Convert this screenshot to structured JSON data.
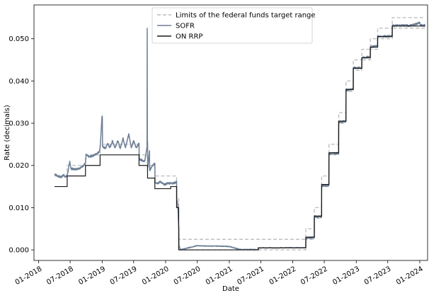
{
  "chart_data": {
    "type": "line",
    "title": "",
    "xlabel": "Date",
    "ylabel": "Rate (decimals)",
    "xlim": [
      "2017-12-05",
      "2024-02-15"
    ],
    "ylim": [
      -0.0025,
      0.058
    ],
    "x_ticks": [
      "2018-01-01",
      "2018-07-01",
      "2019-01-01",
      "2019-07-01",
      "2020-01-01",
      "2020-07-01",
      "2021-01-01",
      "2021-07-01",
      "2022-01-01",
      "2022-07-01",
      "2023-01-01",
      "2023-07-01",
      "2024-01-01"
    ],
    "x_tick_labels": [
      "01-2018",
      "07-2018",
      "01-2019",
      "07-2019",
      "01-2020",
      "07-2020",
      "01-2021",
      "07-2021",
      "01-2022",
      "07-2022",
      "01-2023",
      "07-2023",
      "01-2024"
    ],
    "y_ticks": [
      0.0,
      0.01,
      0.02,
      0.03,
      0.04,
      0.05
    ],
    "y_tick_labels": [
      "0.000",
      "0.010",
      "0.020",
      "0.030",
      "0.040",
      "0.050"
    ],
    "grid": false,
    "legend_position": "top-center",
    "colors": {
      "limits": "#bbbbbb",
      "sofr": "#6e7f96",
      "onrrp": "#1a1a1a"
    },
    "series": [
      {
        "name": "Limits of the federal funds target range",
        "style": "dashed",
        "upper": [
          [
            "2018-04-02",
            0.0175
          ],
          [
            "2018-06-14",
            0.0175
          ],
          [
            "2018-06-14",
            0.02
          ],
          [
            "2018-09-27",
            0.02
          ],
          [
            "2018-09-27",
            0.0225
          ],
          [
            "2018-12-20",
            0.0225
          ],
          [
            "2018-12-20",
            0.025
          ],
          [
            "2019-08-01",
            0.025
          ],
          [
            "2019-08-01",
            0.0225
          ],
          [
            "2019-09-19",
            0.0225
          ],
          [
            "2019-09-19",
            0.02
          ],
          [
            "2019-10-31",
            0.02
          ],
          [
            "2019-10-31",
            0.0175
          ],
          [
            "2020-03-04",
            0.0175
          ],
          [
            "2020-03-04",
            0.0125
          ],
          [
            "2020-03-16",
            0.0125
          ],
          [
            "2020-03-16",
            0.0025
          ],
          [
            "2022-03-17",
            0.0025
          ],
          [
            "2022-03-17",
            0.005
          ],
          [
            "2022-05-05",
            0.005
          ],
          [
            "2022-05-05",
            0.01
          ],
          [
            "2022-06-16",
            0.01
          ],
          [
            "2022-06-16",
            0.0175
          ],
          [
            "2022-07-28",
            0.0175
          ],
          [
            "2022-07-28",
            0.025
          ],
          [
            "2022-09-22",
            0.025
          ],
          [
            "2022-09-22",
            0.0325
          ],
          [
            "2022-11-03",
            0.0325
          ],
          [
            "2022-11-03",
            0.04
          ],
          [
            "2022-12-15",
            0.04
          ],
          [
            "2022-12-15",
            0.045
          ],
          [
            "2023-02-02",
            0.045
          ],
          [
            "2023-02-02",
            0.0475
          ],
          [
            "2023-03-23",
            0.0475
          ],
          [
            "2023-03-23",
            0.05
          ],
          [
            "2023-05-04",
            0.05
          ],
          [
            "2023-05-04",
            0.0525
          ],
          [
            "2023-07-27",
            0.0525
          ],
          [
            "2023-07-27",
            0.055
          ],
          [
            "2024-01-31",
            0.055
          ]
        ],
        "lower": [
          [
            "2020-03-16",
            0.0
          ],
          [
            "2022-03-17",
            0.0
          ],
          [
            "2022-03-17",
            0.0025
          ],
          [
            "2022-05-05",
            0.0025
          ],
          [
            "2022-05-05",
            0.0075
          ],
          [
            "2022-06-16",
            0.0075
          ],
          [
            "2022-06-16",
            0.015
          ],
          [
            "2022-07-28",
            0.015
          ],
          [
            "2022-07-28",
            0.0225
          ],
          [
            "2022-09-22",
            0.0225
          ],
          [
            "2022-09-22",
            0.03
          ],
          [
            "2022-11-03",
            0.03
          ],
          [
            "2022-11-03",
            0.0375
          ],
          [
            "2022-12-15",
            0.0375
          ],
          [
            "2022-12-15",
            0.0425
          ],
          [
            "2023-02-02",
            0.0425
          ],
          [
            "2023-02-02",
            0.045
          ],
          [
            "2023-03-23",
            0.045
          ],
          [
            "2023-03-23",
            0.0475
          ],
          [
            "2023-05-04",
            0.0475
          ],
          [
            "2023-05-04",
            0.05
          ],
          [
            "2023-07-27",
            0.05
          ],
          [
            "2023-07-27",
            0.0525
          ],
          [
            "2024-01-31",
            0.0525
          ]
        ]
      },
      {
        "name": "SOFR",
        "style": "solid",
        "points": [
          [
            "2018-04-02",
            0.018
          ],
          [
            "2018-04-20",
            0.0175
          ],
          [
            "2018-05-10",
            0.0172
          ],
          [
            "2018-05-25",
            0.0178
          ],
          [
            "2018-06-05",
            0.0172
          ],
          [
            "2018-06-14",
            0.0178
          ],
          [
            "2018-06-20",
            0.0188
          ],
          [
            "2018-06-29",
            0.021
          ],
          [
            "2018-07-06",
            0.0192
          ],
          [
            "2018-07-31",
            0.0191
          ],
          [
            "2018-08-20",
            0.0193
          ],
          [
            "2018-09-05",
            0.0196
          ],
          [
            "2018-09-27",
            0.0205
          ],
          [
            "2018-10-01",
            0.0225
          ],
          [
            "2018-10-20",
            0.022
          ],
          [
            "2018-11-01",
            0.0222
          ],
          [
            "2018-11-20",
            0.0225
          ],
          [
            "2018-12-03",
            0.0229
          ],
          [
            "2018-12-14",
            0.0232
          ],
          [
            "2018-12-20",
            0.024
          ],
          [
            "2018-12-31",
            0.0315
          ],
          [
            "2019-01-03",
            0.0245
          ],
          [
            "2019-01-20",
            0.024
          ],
          [
            "2019-02-01",
            0.0252
          ],
          [
            "2019-02-15",
            0.0242
          ],
          [
            "2019-03-01",
            0.0258
          ],
          [
            "2019-03-15",
            0.0242
          ],
          [
            "2019-04-01",
            0.0258
          ],
          [
            "2019-04-15",
            0.024
          ],
          [
            "2019-05-01",
            0.0265
          ],
          [
            "2019-05-15",
            0.0242
          ],
          [
            "2019-06-03",
            0.0275
          ],
          [
            "2019-06-17",
            0.0242
          ],
          [
            "2019-07-01",
            0.0258
          ],
          [
            "2019-07-15",
            0.0242
          ],
          [
            "2019-08-01",
            0.0252
          ],
          [
            "2019-08-02",
            0.0215
          ],
          [
            "2019-08-20",
            0.0212
          ],
          [
            "2019-09-03",
            0.021
          ],
          [
            "2019-09-16",
            0.0243
          ],
          [
            "2019-09-17",
            0.0525
          ],
          [
            "2019-09-18",
            0.0255
          ],
          [
            "2019-09-20",
            0.0195
          ],
          [
            "2019-09-30",
            0.0235
          ],
          [
            "2019-10-01",
            0.0188
          ],
          [
            "2019-10-15",
            0.0198
          ],
          [
            "2019-10-31",
            0.0205
          ],
          [
            "2019-11-01",
            0.016
          ],
          [
            "2019-11-20",
            0.0158
          ],
          [
            "2019-12-02",
            0.0162
          ],
          [
            "2019-12-20",
            0.0155
          ],
          [
            "2019-12-31",
            0.0155
          ],
          [
            "2020-01-10",
            0.0158
          ],
          [
            "2020-02-01",
            0.0158
          ],
          [
            "2020-02-20",
            0.0158
          ],
          [
            "2020-03-04",
            0.0162
          ],
          [
            "2020-03-05",
            0.012
          ],
          [
            "2020-03-10",
            0.011
          ],
          [
            "2020-03-16",
            0.0055
          ],
          [
            "2020-03-18",
            0.001
          ],
          [
            "2020-03-25",
            0.0001
          ],
          [
            "2020-04-15",
            0.0002
          ],
          [
            "2020-05-01",
            0.0004
          ],
          [
            "2020-06-01",
            0.0007
          ],
          [
            "2020-07-01",
            0.001
          ],
          [
            "2020-09-01",
            0.0009
          ],
          [
            "2020-11-01",
            0.0009
          ],
          [
            "2021-01-01",
            0.0008
          ],
          [
            "2021-02-15",
            0.0003
          ],
          [
            "2021-03-01",
            0.0001
          ],
          [
            "2021-06-15",
            0.0001
          ],
          [
            "2021-06-18",
            0.0005
          ],
          [
            "2022-03-16",
            0.0005
          ],
          [
            "2022-03-17",
            0.0029
          ],
          [
            "2022-05-04",
            0.0029
          ],
          [
            "2022-05-05",
            0.0079
          ],
          [
            "2022-06-15",
            0.0078
          ],
          [
            "2022-06-16",
            0.0152
          ],
          [
            "2022-07-27",
            0.0153
          ],
          [
            "2022-07-28",
            0.0228
          ],
          [
            "2022-09-21",
            0.0229
          ],
          [
            "2022-09-22",
            0.0302
          ],
          [
            "2022-11-02",
            0.0305
          ],
          [
            "2022-11-03",
            0.0378
          ],
          [
            "2022-12-14",
            0.0381
          ],
          [
            "2022-12-15",
            0.0431
          ],
          [
            "2023-02-01",
            0.0431
          ],
          [
            "2023-02-02",
            0.0455
          ],
          [
            "2023-03-22",
            0.0457
          ],
          [
            "2023-03-23",
            0.0481
          ],
          [
            "2023-05-03",
            0.0483
          ],
          [
            "2023-05-04",
            0.0506
          ],
          [
            "2023-07-26",
            0.0506
          ],
          [
            "2023-07-27",
            0.0531
          ],
          [
            "2023-10-01",
            0.0532
          ],
          [
            "2023-11-01",
            0.0531
          ],
          [
            "2023-12-15",
            0.0535
          ],
          [
            "2023-12-31",
            0.0538
          ],
          [
            "2024-01-05",
            0.0532
          ],
          [
            "2024-01-31",
            0.0532
          ]
        ]
      },
      {
        "name": "ON RRP",
        "style": "solid",
        "points": [
          [
            "2018-04-02",
            0.015
          ],
          [
            "2018-06-14",
            0.015
          ],
          [
            "2018-06-14",
            0.0175
          ],
          [
            "2018-09-27",
            0.0175
          ],
          [
            "2018-09-27",
            0.02
          ],
          [
            "2018-12-20",
            0.02
          ],
          [
            "2018-12-20",
            0.0225
          ],
          [
            "2019-08-01",
            0.0225
          ],
          [
            "2019-08-01",
            0.02
          ],
          [
            "2019-09-19",
            0.02
          ],
          [
            "2019-09-19",
            0.017
          ],
          [
            "2019-10-31",
            0.017
          ],
          [
            "2019-10-31",
            0.0145
          ],
          [
            "2020-01-30",
            0.0145
          ],
          [
            "2020-01-30",
            0.015
          ],
          [
            "2020-03-04",
            0.015
          ],
          [
            "2020-03-04",
            0.01
          ],
          [
            "2020-03-16",
            0.01
          ],
          [
            "2020-03-16",
            0.0
          ],
          [
            "2021-06-17",
            0.0
          ],
          [
            "2021-06-17",
            0.0005
          ],
          [
            "2022-03-17",
            0.0005
          ],
          [
            "2022-03-17",
            0.003
          ],
          [
            "2022-05-05",
            0.003
          ],
          [
            "2022-05-05",
            0.008
          ],
          [
            "2022-06-16",
            0.008
          ],
          [
            "2022-06-16",
            0.0155
          ],
          [
            "2022-07-28",
            0.0155
          ],
          [
            "2022-07-28",
            0.023
          ],
          [
            "2022-09-22",
            0.023
          ],
          [
            "2022-09-22",
            0.0305
          ],
          [
            "2022-11-03",
            0.0305
          ],
          [
            "2022-11-03",
            0.038
          ],
          [
            "2022-12-15",
            0.038
          ],
          [
            "2022-12-15",
            0.043
          ],
          [
            "2023-02-02",
            0.043
          ],
          [
            "2023-02-02",
            0.0455
          ],
          [
            "2023-03-23",
            0.0455
          ],
          [
            "2023-03-23",
            0.048
          ],
          [
            "2023-05-04",
            0.048
          ],
          [
            "2023-05-04",
            0.0505
          ],
          [
            "2023-07-27",
            0.0505
          ],
          [
            "2023-07-27",
            0.053
          ],
          [
            "2024-01-31",
            0.053
          ]
        ]
      }
    ]
  }
}
